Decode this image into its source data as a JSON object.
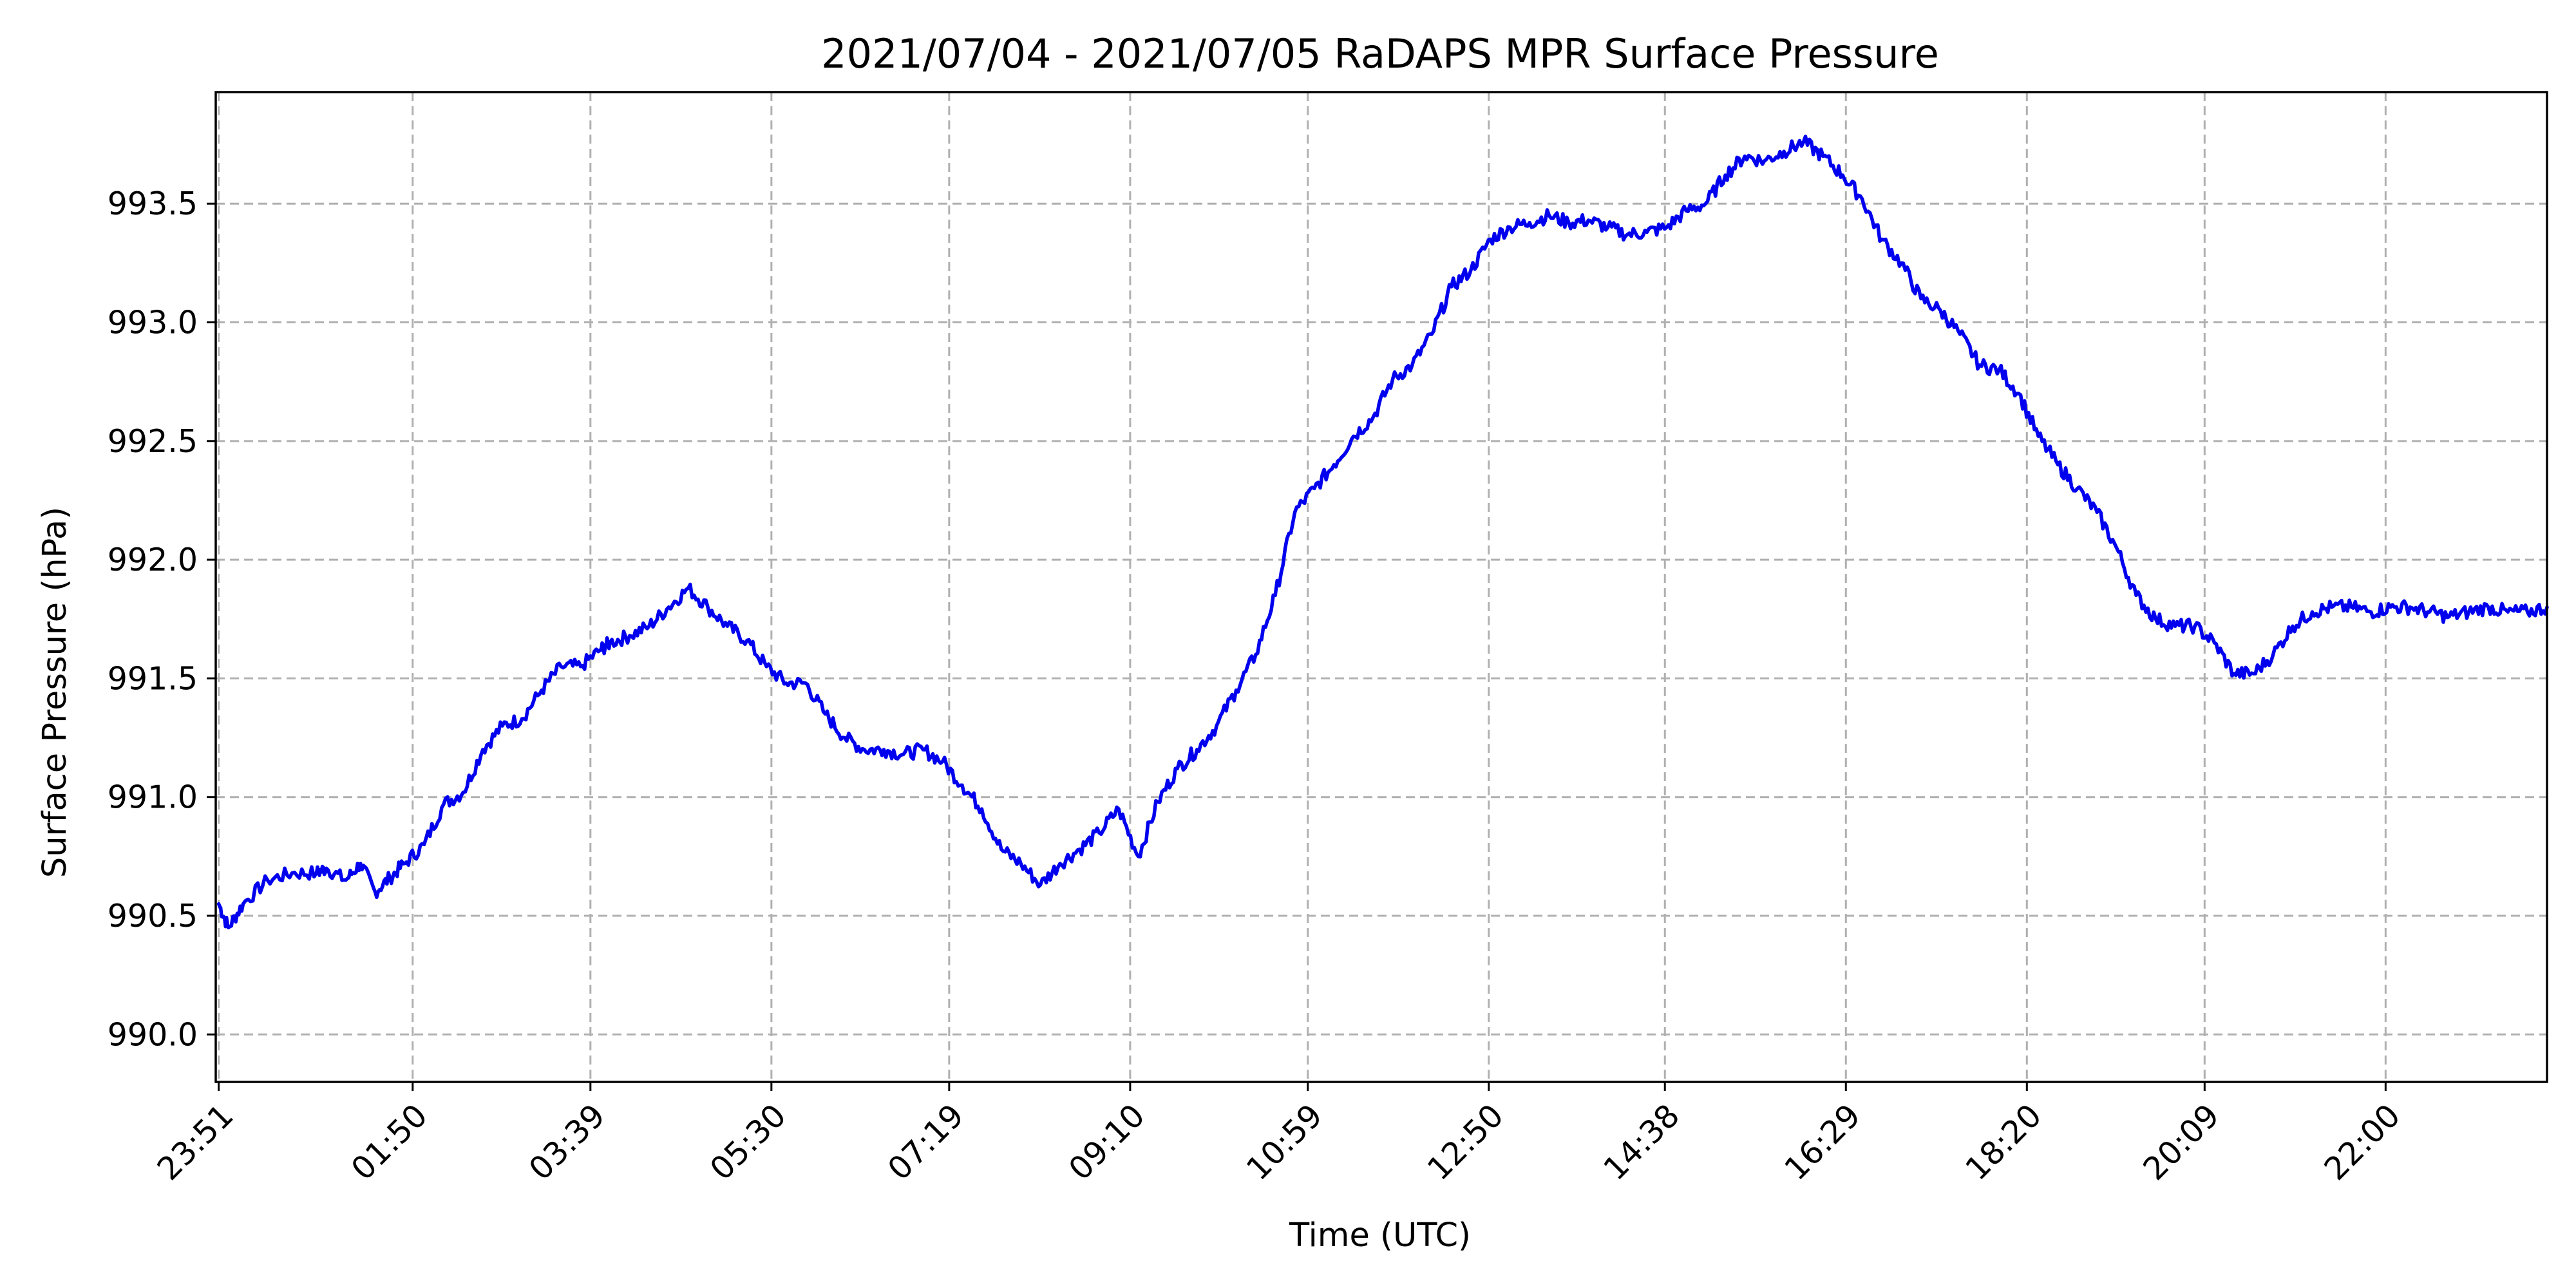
{
  "chart_data": {
    "type": "line",
    "title": "2021/07/04 - 2021/07/05 RaDAPS MPR Surface Pressure",
    "xlabel": "Time (UTC)",
    "ylabel": "Surface Pressure (hPa)",
    "x_tick_labels": [
      "23:51",
      "01:50",
      "03:39",
      "05:30",
      "07:19",
      "09:10",
      "10:59",
      "12:50",
      "14:38",
      "16:29",
      "18:20",
      "20:09",
      "22:00"
    ],
    "x_tick_positions_hours": [
      0,
      1.983,
      3.8,
      5.65,
      7.467,
      9.317,
      11.133,
      12.983,
      14.783,
      16.633,
      18.483,
      20.3,
      22.15
    ],
    "xlim_hours": [
      -0.03,
      23.8
    ],
    "ylim": [
      989.8,
      993.97
    ],
    "yticks": [
      990.0,
      990.5,
      991.0,
      991.5,
      992.0,
      992.5,
      993.0,
      993.5
    ],
    "ytick_labels": [
      "990.0",
      "990.5",
      "991.0",
      "991.5",
      "992.0",
      "992.5",
      "993.0",
      "993.5"
    ],
    "grid": true,
    "series": [
      {
        "color": "#0000ee",
        "x_hours": [
          0,
          0.1,
          0.25,
          0.5,
          0.75,
          1.0,
          1.1,
          1.3,
          1.45,
          1.6,
          1.75,
          1.9,
          2.1,
          2.3,
          2.5,
          2.7,
          2.9,
          3.1,
          3.3,
          3.5,
          3.7,
          3.9,
          4.0,
          4.2,
          4.4,
          4.6,
          4.8,
          5.0,
          5.2,
          5.4,
          5.6,
          5.8,
          6.0,
          6.2,
          6.4,
          6.6,
          6.8,
          7.0,
          7.2,
          7.4,
          7.6,
          7.8,
          8.0,
          8.2,
          8.4,
          8.6,
          8.8,
          9.0,
          9.2,
          9.4,
          9.6,
          9.8,
          10.0,
          10.2,
          10.4,
          10.6,
          10.8,
          11.0,
          11.2,
          11.4,
          11.6,
          11.8,
          12.0,
          12.2,
          12.4,
          12.6,
          12.8,
          13.0,
          13.2,
          13.4,
          13.6,
          13.8,
          14.0,
          14.2,
          14.4,
          14.6,
          14.8,
          15.0,
          15.2,
          15.4,
          15.6,
          15.8,
          16.0,
          16.2,
          16.4,
          16.6,
          16.8,
          17.0,
          17.2,
          17.4,
          17.6,
          17.8,
          18.0,
          18.2,
          18.4,
          18.6,
          18.8,
          19.0,
          19.2,
          19.4,
          19.6,
          19.8,
          20.0,
          20.2,
          20.4,
          20.6,
          20.8,
          21.0,
          21.2,
          21.4,
          21.6,
          21.8,
          22.0,
          22.2,
          22.4,
          22.6,
          22.8,
          23.0,
          23.2,
          23.4,
          23.6,
          23.8
        ],
        "y_values": [
          990.55,
          990.45,
          990.55,
          990.65,
          990.68,
          990.68,
          990.7,
          990.65,
          990.72,
          990.6,
          990.66,
          990.72,
          990.8,
          990.97,
          991.02,
          991.2,
          991.3,
          991.33,
          991.45,
          991.55,
          991.55,
          991.62,
          991.65,
          991.68,
          991.72,
          991.8,
          991.88,
          991.8,
          991.72,
          991.66,
          991.55,
          991.48,
          991.48,
          991.35,
          991.25,
          991.2,
          991.2,
          991.18,
          991.2,
          991.15,
          991.05,
          990.95,
          990.78,
          990.72,
          990.63,
          990.72,
          990.78,
          990.85,
          990.95,
          990.75,
          990.98,
          991.12,
          991.2,
          991.3,
          991.45,
          991.6,
          991.85,
          992.2,
          992.3,
          992.4,
          992.52,
          992.6,
          992.76,
          992.82,
          992.95,
          993.15,
          993.22,
          993.35,
          993.4,
          993.42,
          993.45,
          993.42,
          993.43,
          993.4,
          993.37,
          993.38,
          993.4,
          993.47,
          993.5,
          993.62,
          993.7,
          993.68,
          993.72,
          993.76,
          993.7,
          993.62,
          993.52,
          993.35,
          993.25,
          993.1,
          993.05,
          992.95,
          992.82,
          992.8,
          992.7,
          992.52,
          992.4,
          992.3,
          992.2,
          992.05,
          991.85,
          991.75,
          991.72,
          991.72,
          991.65,
          991.52,
          991.52,
          991.6,
          991.72,
          991.78,
          991.8,
          991.8,
          991.78,
          991.8,
          991.8,
          991.78,
          991.76,
          991.78,
          991.8,
          991.78,
          991.78,
          991.8
        ]
      }
    ]
  }
}
